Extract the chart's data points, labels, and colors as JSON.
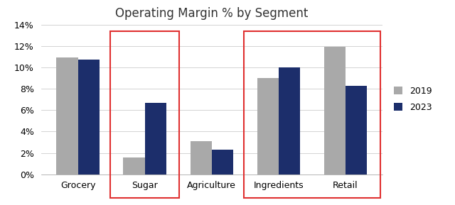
{
  "title": "Operating Margin % by Segment",
  "categories": [
    "Grocery",
    "Sugar",
    "Agriculture",
    "Ingredients",
    "Retail"
  ],
  "values_2019": [
    0.109,
    0.016,
    0.031,
    0.09,
    0.119
  ],
  "values_2023": [
    0.107,
    0.067,
    0.023,
    0.1,
    0.083
  ],
  "color_2019": "#a9a9a9",
  "color_2023": "#1c2e6b",
  "ylim": [
    0,
    0.14
  ],
  "yticks": [
    0,
    0.02,
    0.04,
    0.06,
    0.08,
    0.1,
    0.12,
    0.14
  ],
  "legend_labels": [
    "2019",
    "2023"
  ],
  "bar_width": 0.32,
  "background_color": "#ffffff",
  "title_fontsize": 12
}
